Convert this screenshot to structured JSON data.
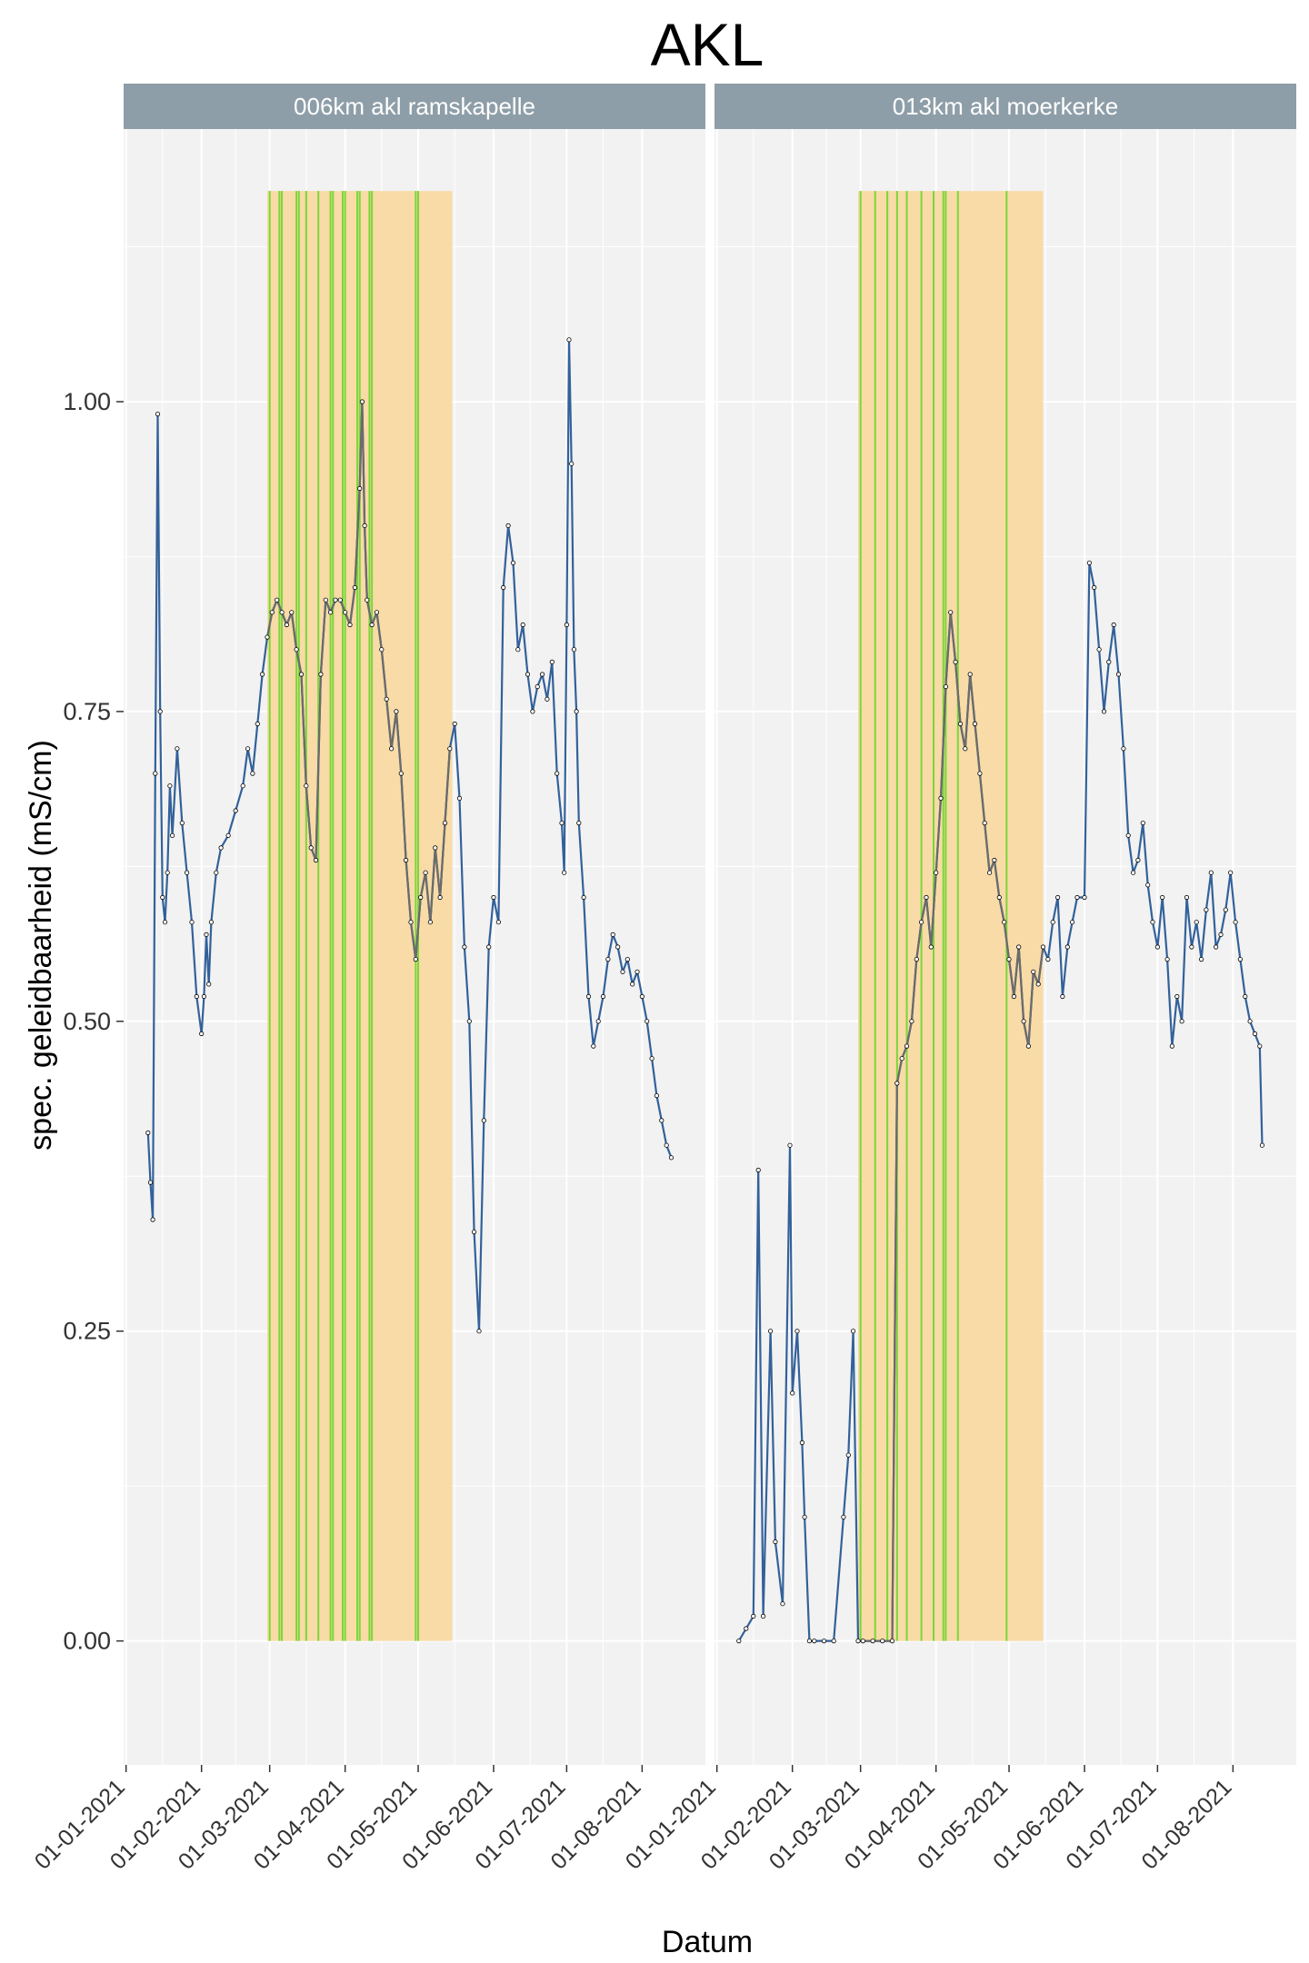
{
  "chart_data": {
    "type": "line",
    "title": "AKL",
    "xlabel": "Datum",
    "ylabel": "spec. geleidbaarheid (mS/cm)",
    "ylim": [
      -0.1,
      1.22
    ],
    "xlim": [
      "2020-12-31",
      "2021-08-27"
    ],
    "yticks": [
      0.0,
      0.25,
      0.5,
      0.75,
      1.0
    ],
    "ytick_labels": [
      "0.00",
      "0.25",
      "0.50",
      "0.75",
      "1.00"
    ],
    "xticks": [
      "2021-01-01",
      "2021-02-01",
      "2021-03-01",
      "2021-04-01",
      "2021-05-01",
      "2021-06-01",
      "2021-07-01",
      "2021-08-01"
    ],
    "xtick_labels": [
      "01-01-2021",
      "01-02-2021",
      "01-03-2021",
      "01-04-2021",
      "01-05-2021",
      "01-06-2021",
      "01-07-2021",
      "01-08-2021"
    ],
    "grid": true,
    "colors": {
      "line": "#33619A",
      "line_highlight": "#6B6B6B",
      "shaded_period": "#F8DBA6",
      "event_lines": "#7CD63A",
      "strip_bg": "#8E9EA8",
      "panel_bg": "#F2F2F2",
      "grid": "#FFFFFF"
    },
    "panels": [
      {
        "name": "006km akl ramskapelle",
        "shaded_period": [
          "2021-02-28",
          "2021-05-15"
        ],
        "event_dates": [
          "2021-03-01",
          "2021-03-05",
          "2021-03-06",
          "2021-03-12",
          "2021-03-13",
          "2021-03-16",
          "2021-03-21",
          "2021-03-26",
          "2021-03-27",
          "2021-03-31",
          "2021-04-01",
          "2021-04-06",
          "2021-04-07",
          "2021-04-11",
          "2021-04-12",
          "2021-04-30",
          "2021-05-01"
        ],
        "series": [
          {
            "x": [
              "2021-01-10",
              "2021-01-11",
              "2021-01-12",
              "2021-01-13",
              "2021-01-14",
              "2021-01-15",
              "2021-01-16",
              "2021-01-17",
              "2021-01-18",
              "2021-01-19",
              "2021-01-20",
              "2021-01-22",
              "2021-01-24",
              "2021-01-26",
              "2021-01-28",
              "2021-01-30",
              "2021-02-01",
              "2021-02-02",
              "2021-02-03",
              "2021-02-04",
              "2021-02-05",
              "2021-02-07",
              "2021-02-09",
              "2021-02-12",
              "2021-02-15",
              "2021-02-18",
              "2021-02-20",
              "2021-02-22",
              "2021-02-24",
              "2021-02-26",
              "2021-02-28",
              "2021-03-02",
              "2021-03-04",
              "2021-03-06",
              "2021-03-08",
              "2021-03-10",
              "2021-03-12",
              "2021-03-14",
              "2021-03-16",
              "2021-03-18",
              "2021-03-20",
              "2021-03-22",
              "2021-03-24",
              "2021-03-26",
              "2021-03-28",
              "2021-03-30",
              "2021-04-01",
              "2021-04-03",
              "2021-04-05",
              "2021-04-07",
              "2021-04-08",
              "2021-04-09",
              "2021-04-10",
              "2021-04-12",
              "2021-04-14",
              "2021-04-16",
              "2021-04-18",
              "2021-04-20",
              "2021-04-22",
              "2021-04-24",
              "2021-04-26",
              "2021-04-28",
              "2021-04-30",
              "2021-05-02",
              "2021-05-04",
              "2021-05-06",
              "2021-05-08",
              "2021-05-10",
              "2021-05-12",
              "2021-05-14",
              "2021-05-16",
              "2021-05-18",
              "2021-05-20",
              "2021-05-22",
              "2021-05-24",
              "2021-05-26",
              "2021-05-28",
              "2021-05-30",
              "2021-06-01",
              "2021-06-03",
              "2021-06-05",
              "2021-06-07",
              "2021-06-09",
              "2021-06-11",
              "2021-06-13",
              "2021-06-15",
              "2021-06-17",
              "2021-06-19",
              "2021-06-21",
              "2021-06-23",
              "2021-06-25",
              "2021-06-27",
              "2021-06-29",
              "2021-06-30",
              "2021-07-01",
              "2021-07-02",
              "2021-07-03",
              "2021-07-04",
              "2021-07-05",
              "2021-07-06",
              "2021-07-08",
              "2021-07-10",
              "2021-07-12",
              "2021-07-14",
              "2021-07-16",
              "2021-07-18",
              "2021-07-20",
              "2021-07-22",
              "2021-07-24",
              "2021-07-26",
              "2021-07-28",
              "2021-07-30",
              "2021-08-01",
              "2021-08-03",
              "2021-08-05",
              "2021-08-07",
              "2021-08-09",
              "2021-08-11",
              "2021-08-13"
            ],
            "y": [
              0.41,
              0.37,
              0.34,
              0.7,
              0.99,
              0.75,
              0.6,
              0.58,
              0.62,
              0.69,
              0.65,
              0.72,
              0.66,
              0.62,
              0.58,
              0.52,
              0.49,
              0.52,
              0.57,
              0.53,
              0.58,
              0.62,
              0.64,
              0.65,
              0.67,
              0.69,
              0.72,
              0.7,
              0.74,
              0.78,
              0.81,
              0.83,
              0.84,
              0.83,
              0.82,
              0.83,
              0.8,
              0.78,
              0.69,
              0.64,
              0.63,
              0.78,
              0.84,
              0.83,
              0.84,
              0.84,
              0.83,
              0.82,
              0.85,
              0.93,
              1.0,
              0.9,
              0.84,
              0.82,
              0.83,
              0.8,
              0.76,
              0.72,
              0.75,
              0.7,
              0.63,
              0.58,
              0.55,
              0.6,
              0.62,
              0.58,
              0.64,
              0.6,
              0.66,
              0.72,
              0.74,
              0.68,
              0.56,
              0.5,
              0.33,
              0.25,
              0.42,
              0.56,
              0.6,
              0.58,
              0.85,
              0.9,
              0.87,
              0.8,
              0.82,
              0.78,
              0.75,
              0.77,
              0.78,
              0.76,
              0.79,
              0.7,
              0.66,
              0.62,
              0.82,
              1.05,
              0.95,
              0.8,
              0.75,
              0.66,
              0.6,
              0.52,
              0.48,
              0.5,
              0.52,
              0.55,
              0.57,
              0.56,
              0.54,
              0.55,
              0.53,
              0.54,
              0.52,
              0.5,
              0.47,
              0.44,
              0.42,
              0.4,
              0.39
            ]
          }
        ]
      },
      {
        "name": "013km akl moerkerke",
        "shaded_period": [
          "2021-02-28",
          "2021-05-15"
        ],
        "event_dates": [
          "2021-03-01",
          "2021-03-07",
          "2021-03-12",
          "2021-03-16",
          "2021-03-20",
          "2021-03-26",
          "2021-03-31",
          "2021-04-04",
          "2021-04-05",
          "2021-04-10",
          "2021-04-30"
        ],
        "series": [
          {
            "x": [
              "2021-01-10",
              "2021-01-13",
              "2021-01-16",
              "2021-01-18",
              "2021-01-20",
              "2021-01-23",
              "2021-01-25",
              "2021-01-28",
              "2021-01-31",
              "2021-02-01",
              "2021-02-03",
              "2021-02-05",
              "2021-02-06",
              "2021-02-08",
              "2021-02-10",
              "2021-02-14",
              "2021-02-18",
              "2021-02-22",
              "2021-02-24",
              "2021-02-26",
              "2021-02-28",
              "2021-03-02",
              "2021-03-06",
              "2021-03-10",
              "2021-03-14",
              "2021-03-16",
              "2021-03-18",
              "2021-03-20",
              "2021-03-22",
              "2021-03-24",
              "2021-03-26",
              "2021-03-28",
              "2021-03-30",
              "2021-04-01",
              "2021-04-03",
              "2021-04-05",
              "2021-04-07",
              "2021-04-09",
              "2021-04-11",
              "2021-04-13",
              "2021-04-15",
              "2021-04-17",
              "2021-04-19",
              "2021-04-21",
              "2021-04-23",
              "2021-04-25",
              "2021-04-27",
              "2021-04-29",
              "2021-05-01",
              "2021-05-03",
              "2021-05-05",
              "2021-05-07",
              "2021-05-09",
              "2021-05-11",
              "2021-05-13",
              "2021-05-15",
              "2021-05-17",
              "2021-05-19",
              "2021-05-21",
              "2021-05-23",
              "2021-05-25",
              "2021-05-27",
              "2021-05-29",
              "2021-06-01",
              "2021-06-03",
              "2021-06-05",
              "2021-06-07",
              "2021-06-09",
              "2021-06-11",
              "2021-06-13",
              "2021-06-15",
              "2021-06-17",
              "2021-06-19",
              "2021-06-21",
              "2021-06-23",
              "2021-06-25",
              "2021-06-27",
              "2021-06-29",
              "2021-07-01",
              "2021-07-03",
              "2021-07-05",
              "2021-07-07",
              "2021-07-09",
              "2021-07-11",
              "2021-07-13",
              "2021-07-15",
              "2021-07-17",
              "2021-07-19",
              "2021-07-21",
              "2021-07-23",
              "2021-07-25",
              "2021-07-27",
              "2021-07-29",
              "2021-07-31",
              "2021-08-02",
              "2021-08-04",
              "2021-08-06",
              "2021-08-08",
              "2021-08-10",
              "2021-08-12",
              "2021-08-13"
            ],
            "y": [
              0.0,
              0.01,
              0.02,
              0.38,
              0.02,
              0.25,
              0.08,
              0.03,
              0.4,
              0.2,
              0.25,
              0.16,
              0.1,
              0.0,
              0.0,
              0.0,
              0.0,
              0.1,
              0.15,
              0.25,
              0.0,
              0.0,
              0.0,
              0.0,
              0.0,
              0.45,
              0.47,
              0.48,
              0.5,
              0.55,
              0.58,
              0.6,
              0.56,
              0.62,
              0.68,
              0.77,
              0.83,
              0.79,
              0.74,
              0.72,
              0.78,
              0.74,
              0.7,
              0.66,
              0.62,
              0.63,
              0.6,
              0.58,
              0.55,
              0.52,
              0.56,
              0.5,
              0.48,
              0.54,
              0.53,
              0.56,
              0.55,
              0.58,
              0.6,
              0.52,
              0.56,
              0.58,
              0.6,
              0.6,
              0.87,
              0.85,
              0.8,
              0.75,
              0.79,
              0.82,
              0.78,
              0.72,
              0.65,
              0.62,
              0.63,
              0.66,
              0.61,
              0.58,
              0.56,
              0.6,
              0.55,
              0.48,
              0.52,
              0.5,
              0.6,
              0.56,
              0.58,
              0.55,
              0.59,
              0.62,
              0.56,
              0.57,
              0.59,
              0.62,
              0.58,
              0.55,
              0.52,
              0.5,
              0.49,
              0.48,
              0.4
            ]
          }
        ]
      }
    ]
  }
}
